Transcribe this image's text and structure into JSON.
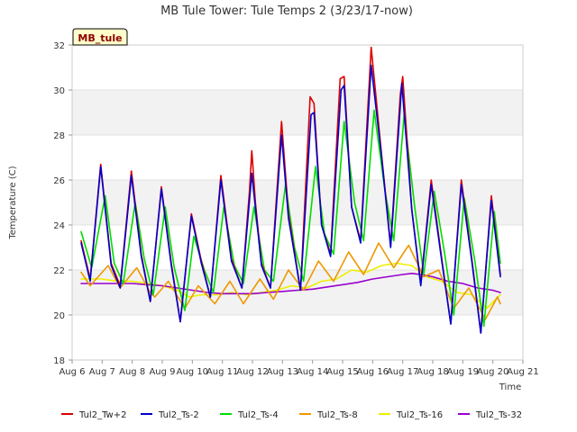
{
  "chart_data": {
    "type": "line",
    "title": "MB Tule Tower: Tule Temps 2 (3/23/17-now)",
    "badge": "MB_tule",
    "xlabel": "Time",
    "ylabel": "Temperature (C)",
    "xlim": [
      6,
      21
    ],
    "ylim": [
      18,
      32
    ],
    "x_ticks": [
      {
        "value": 6,
        "label": "Aug 6"
      },
      {
        "value": 7,
        "label": "Aug 7"
      },
      {
        "value": 8,
        "label": "Aug 8"
      },
      {
        "value": 9,
        "label": "Aug 9"
      },
      {
        "value": 10,
        "label": "Aug 10"
      },
      {
        "value": 11,
        "label": "Aug 11"
      },
      {
        "value": 12,
        "label": "Aug 12"
      },
      {
        "value": 13,
        "label": "Aug 13"
      },
      {
        "value": 14,
        "label": "Aug 14"
      },
      {
        "value": 15,
        "label": "Aug 15"
      },
      {
        "value": 16,
        "label": "Aug 16"
      },
      {
        "value": 17,
        "label": "Aug 17"
      },
      {
        "value": 18,
        "label": "Aug 18"
      },
      {
        "value": 19,
        "label": "Aug 19"
      },
      {
        "value": 20,
        "label": "Aug 20"
      },
      {
        "value": 21,
        "label": "Aug 21"
      }
    ],
    "y_ticks": [
      {
        "value": 18,
        "label": "18"
      },
      {
        "value": 20,
        "label": "20"
      },
      {
        "value": 22,
        "label": "22"
      },
      {
        "value": 24,
        "label": "24"
      },
      {
        "value": 26,
        "label": "26"
      },
      {
        "value": 28,
        "label": "28"
      },
      {
        "value": 30,
        "label": "30"
      },
      {
        "value": 32,
        "label": "32"
      }
    ],
    "bands": [
      [
        20,
        22
      ],
      [
        24,
        26
      ],
      [
        28,
        30
      ]
    ],
    "legend_position": "bottom",
    "series": [
      {
        "name": "Tul2_Tw+2",
        "color": "#dd0000",
        "points": [
          [
            6.3,
            23.3
          ],
          [
            6.6,
            21.6
          ],
          [
            6.95,
            26.7
          ],
          [
            7.3,
            22.3
          ],
          [
            7.6,
            21.3
          ],
          [
            7.97,
            26.4
          ],
          [
            8.3,
            22.7
          ],
          [
            8.6,
            20.6
          ],
          [
            8.97,
            25.7
          ],
          [
            9.3,
            22.3
          ],
          [
            9.6,
            19.7
          ],
          [
            9.97,
            24.5
          ],
          [
            10.3,
            22.4
          ],
          [
            10.6,
            20.8
          ],
          [
            10.95,
            26.2
          ],
          [
            11.3,
            22.5
          ],
          [
            11.65,
            21.2
          ],
          [
            11.9,
            25.5
          ],
          [
            11.98,
            27.3
          ],
          [
            12.1,
            25.0
          ],
          [
            12.3,
            22.3
          ],
          [
            12.6,
            21.2
          ],
          [
            12.97,
            28.6
          ],
          [
            13.2,
            24.5
          ],
          [
            13.6,
            21.1
          ],
          [
            13.92,
            29.7
          ],
          [
            14.05,
            29.4
          ],
          [
            14.3,
            24.0
          ],
          [
            14.6,
            22.7
          ],
          [
            14.92,
            30.5
          ],
          [
            15.05,
            30.6
          ],
          [
            15.3,
            24.8
          ],
          [
            15.6,
            23.3
          ],
          [
            15.95,
            31.9
          ],
          [
            16.3,
            27.1
          ],
          [
            16.6,
            23.1
          ],
          [
            16.92,
            29.8
          ],
          [
            17.0,
            30.6
          ],
          [
            17.3,
            24.7
          ],
          [
            17.6,
            21.4
          ],
          [
            17.95,
            26.0
          ],
          [
            18.3,
            22.5
          ],
          [
            18.6,
            19.6
          ],
          [
            18.95,
            26.0
          ],
          [
            19.3,
            22.5
          ],
          [
            19.6,
            19.2
          ],
          [
            19.95,
            25.3
          ],
          [
            20.25,
            21.8
          ]
        ]
      },
      {
        "name": "Tul2_Ts-2",
        "color": "#0000cc",
        "points": [
          [
            6.3,
            23.2
          ],
          [
            6.6,
            21.5
          ],
          [
            6.95,
            26.6
          ],
          [
            7.3,
            22.2
          ],
          [
            7.6,
            21.2
          ],
          [
            7.97,
            26.2
          ],
          [
            8.3,
            22.6
          ],
          [
            8.6,
            20.6
          ],
          [
            8.97,
            25.6
          ],
          [
            9.3,
            22.2
          ],
          [
            9.6,
            19.7
          ],
          [
            9.97,
            24.4
          ],
          [
            10.3,
            22.3
          ],
          [
            10.6,
            20.8
          ],
          [
            10.95,
            26.0
          ],
          [
            11.3,
            22.4
          ],
          [
            11.65,
            21.2
          ],
          [
            11.98,
            26.3
          ],
          [
            12.3,
            22.2
          ],
          [
            12.6,
            21.2
          ],
          [
            12.97,
            28.0
          ],
          [
            13.2,
            24.3
          ],
          [
            13.6,
            21.1
          ],
          [
            13.95,
            28.9
          ],
          [
            14.05,
            29.0
          ],
          [
            14.3,
            24.0
          ],
          [
            14.6,
            22.6
          ],
          [
            14.95,
            30.0
          ],
          [
            15.05,
            30.2
          ],
          [
            15.3,
            24.8
          ],
          [
            15.6,
            23.2
          ],
          [
            15.95,
            31.1
          ],
          [
            16.3,
            27.0
          ],
          [
            16.6,
            23.0
          ],
          [
            16.97,
            30.3
          ],
          [
            17.3,
            24.7
          ],
          [
            17.6,
            21.3
          ],
          [
            17.95,
            25.8
          ],
          [
            18.3,
            22.4
          ],
          [
            18.6,
            19.6
          ],
          [
            18.95,
            25.8
          ],
          [
            19.3,
            22.4
          ],
          [
            19.6,
            19.2
          ],
          [
            19.95,
            25.1
          ],
          [
            20.25,
            21.7
          ]
        ]
      },
      {
        "name": "Tul2_Ts-4",
        "color": "#00dd00",
        "points": [
          [
            6.3,
            23.7
          ],
          [
            6.65,
            22.1
          ],
          [
            7.1,
            25.3
          ],
          [
            7.4,
            22.3
          ],
          [
            7.7,
            21.4
          ],
          [
            8.1,
            25.0
          ],
          [
            8.4,
            22.5
          ],
          [
            8.7,
            20.9
          ],
          [
            9.1,
            24.8
          ],
          [
            9.4,
            22.1
          ],
          [
            9.75,
            20.2
          ],
          [
            10.05,
            23.5
          ],
          [
            10.4,
            22.0
          ],
          [
            10.7,
            21.0
          ],
          [
            11.05,
            24.8
          ],
          [
            11.4,
            22.2
          ],
          [
            11.7,
            21.4
          ],
          [
            12.05,
            24.8
          ],
          [
            12.4,
            22.0
          ],
          [
            12.7,
            21.5
          ],
          [
            13.1,
            25.8
          ],
          [
            13.4,
            23.0
          ],
          [
            13.7,
            21.5
          ],
          [
            14.1,
            26.6
          ],
          [
            14.4,
            23.6
          ],
          [
            14.7,
            22.7
          ],
          [
            15.05,
            28.6
          ],
          [
            15.4,
            25.0
          ],
          [
            15.7,
            23.3
          ],
          [
            16.05,
            29.1
          ],
          [
            16.4,
            25.6
          ],
          [
            16.7,
            23.3
          ],
          [
            17.05,
            28.9
          ],
          [
            17.4,
            24.8
          ],
          [
            17.7,
            21.8
          ],
          [
            18.05,
            25.5
          ],
          [
            18.4,
            22.7
          ],
          [
            18.7,
            20.0
          ],
          [
            19.05,
            25.2
          ],
          [
            19.4,
            22.4
          ],
          [
            19.7,
            19.5
          ],
          [
            20.05,
            24.6
          ],
          [
            20.25,
            22.3
          ]
        ]
      },
      {
        "name": "Tul2_Ts-8",
        "color": "#ee9900",
        "points": [
          [
            6.3,
            21.9
          ],
          [
            6.6,
            21.3
          ],
          [
            7.2,
            22.2
          ],
          [
            7.6,
            21.2
          ],
          [
            8.15,
            22.1
          ],
          [
            8.6,
            21.0
          ],
          [
            8.75,
            20.8
          ],
          [
            9.2,
            21.5
          ],
          [
            9.75,
            20.3
          ],
          [
            10.2,
            21.3
          ],
          [
            10.75,
            20.5
          ],
          [
            11.25,
            21.5
          ],
          [
            11.7,
            20.5
          ],
          [
            12.25,
            21.6
          ],
          [
            12.7,
            20.7
          ],
          [
            13.2,
            22.0
          ],
          [
            13.7,
            21.1
          ],
          [
            14.2,
            22.4
          ],
          [
            14.7,
            21.5
          ],
          [
            15.2,
            22.8
          ],
          [
            15.7,
            21.8
          ],
          [
            16.2,
            23.2
          ],
          [
            16.7,
            22.1
          ],
          [
            17.2,
            23.1
          ],
          [
            17.7,
            21.7
          ],
          [
            18.2,
            22.0
          ],
          [
            18.7,
            20.3
          ],
          [
            19.2,
            21.2
          ],
          [
            19.75,
            19.8
          ],
          [
            20.15,
            20.8
          ],
          [
            20.25,
            20.5
          ]
        ]
      },
      {
        "name": "Tul2_Ts-16",
        "color": "#eeee00",
        "points": [
          [
            6.3,
            21.6
          ],
          [
            7.0,
            21.6
          ],
          [
            7.5,
            21.5
          ],
          [
            8.0,
            21.5
          ],
          [
            8.5,
            21.4
          ],
          [
            9.0,
            21.3
          ],
          [
            9.5,
            21.1
          ],
          [
            9.9,
            20.8
          ],
          [
            10.3,
            20.9
          ],
          [
            10.8,
            20.9
          ],
          [
            11.3,
            21.0
          ],
          [
            11.8,
            20.9
          ],
          [
            12.3,
            21.0
          ],
          [
            12.8,
            21.1
          ],
          [
            13.3,
            21.3
          ],
          [
            13.8,
            21.2
          ],
          [
            14.3,
            21.5
          ],
          [
            14.8,
            21.6
          ],
          [
            15.3,
            22.0
          ],
          [
            15.8,
            21.9
          ],
          [
            16.3,
            22.2
          ],
          [
            16.8,
            22.3
          ],
          [
            17.3,
            22.2
          ],
          [
            17.8,
            21.7
          ],
          [
            18.3,
            21.5
          ],
          [
            18.8,
            21.0
          ],
          [
            19.3,
            20.9
          ],
          [
            19.8,
            20.3
          ],
          [
            20.25,
            20.9
          ]
        ]
      },
      {
        "name": "Tul2_Ts-32",
        "color": "#9900cc",
        "points": [
          [
            6.3,
            21.4
          ],
          [
            7.0,
            21.4
          ],
          [
            7.5,
            21.4
          ],
          [
            8.0,
            21.4
          ],
          [
            8.5,
            21.35
          ],
          [
            9.0,
            21.3
          ],
          [
            9.5,
            21.2
          ],
          [
            10.0,
            21.1
          ],
          [
            10.5,
            21.0
          ],
          [
            11.0,
            20.95
          ],
          [
            11.5,
            20.95
          ],
          [
            12.0,
            20.95
          ],
          [
            12.5,
            21.0
          ],
          [
            13.0,
            21.05
          ],
          [
            13.5,
            21.1
          ],
          [
            14.0,
            21.15
          ],
          [
            14.5,
            21.25
          ],
          [
            15.0,
            21.35
          ],
          [
            15.5,
            21.45
          ],
          [
            16.0,
            21.6
          ],
          [
            16.5,
            21.7
          ],
          [
            17.0,
            21.8
          ],
          [
            17.3,
            21.85
          ],
          [
            17.6,
            21.8
          ],
          [
            18.0,
            21.7
          ],
          [
            18.5,
            21.5
          ],
          [
            19.0,
            21.4
          ],
          [
            19.5,
            21.2
          ],
          [
            20.0,
            21.1
          ],
          [
            20.25,
            21.0
          ]
        ]
      }
    ]
  }
}
